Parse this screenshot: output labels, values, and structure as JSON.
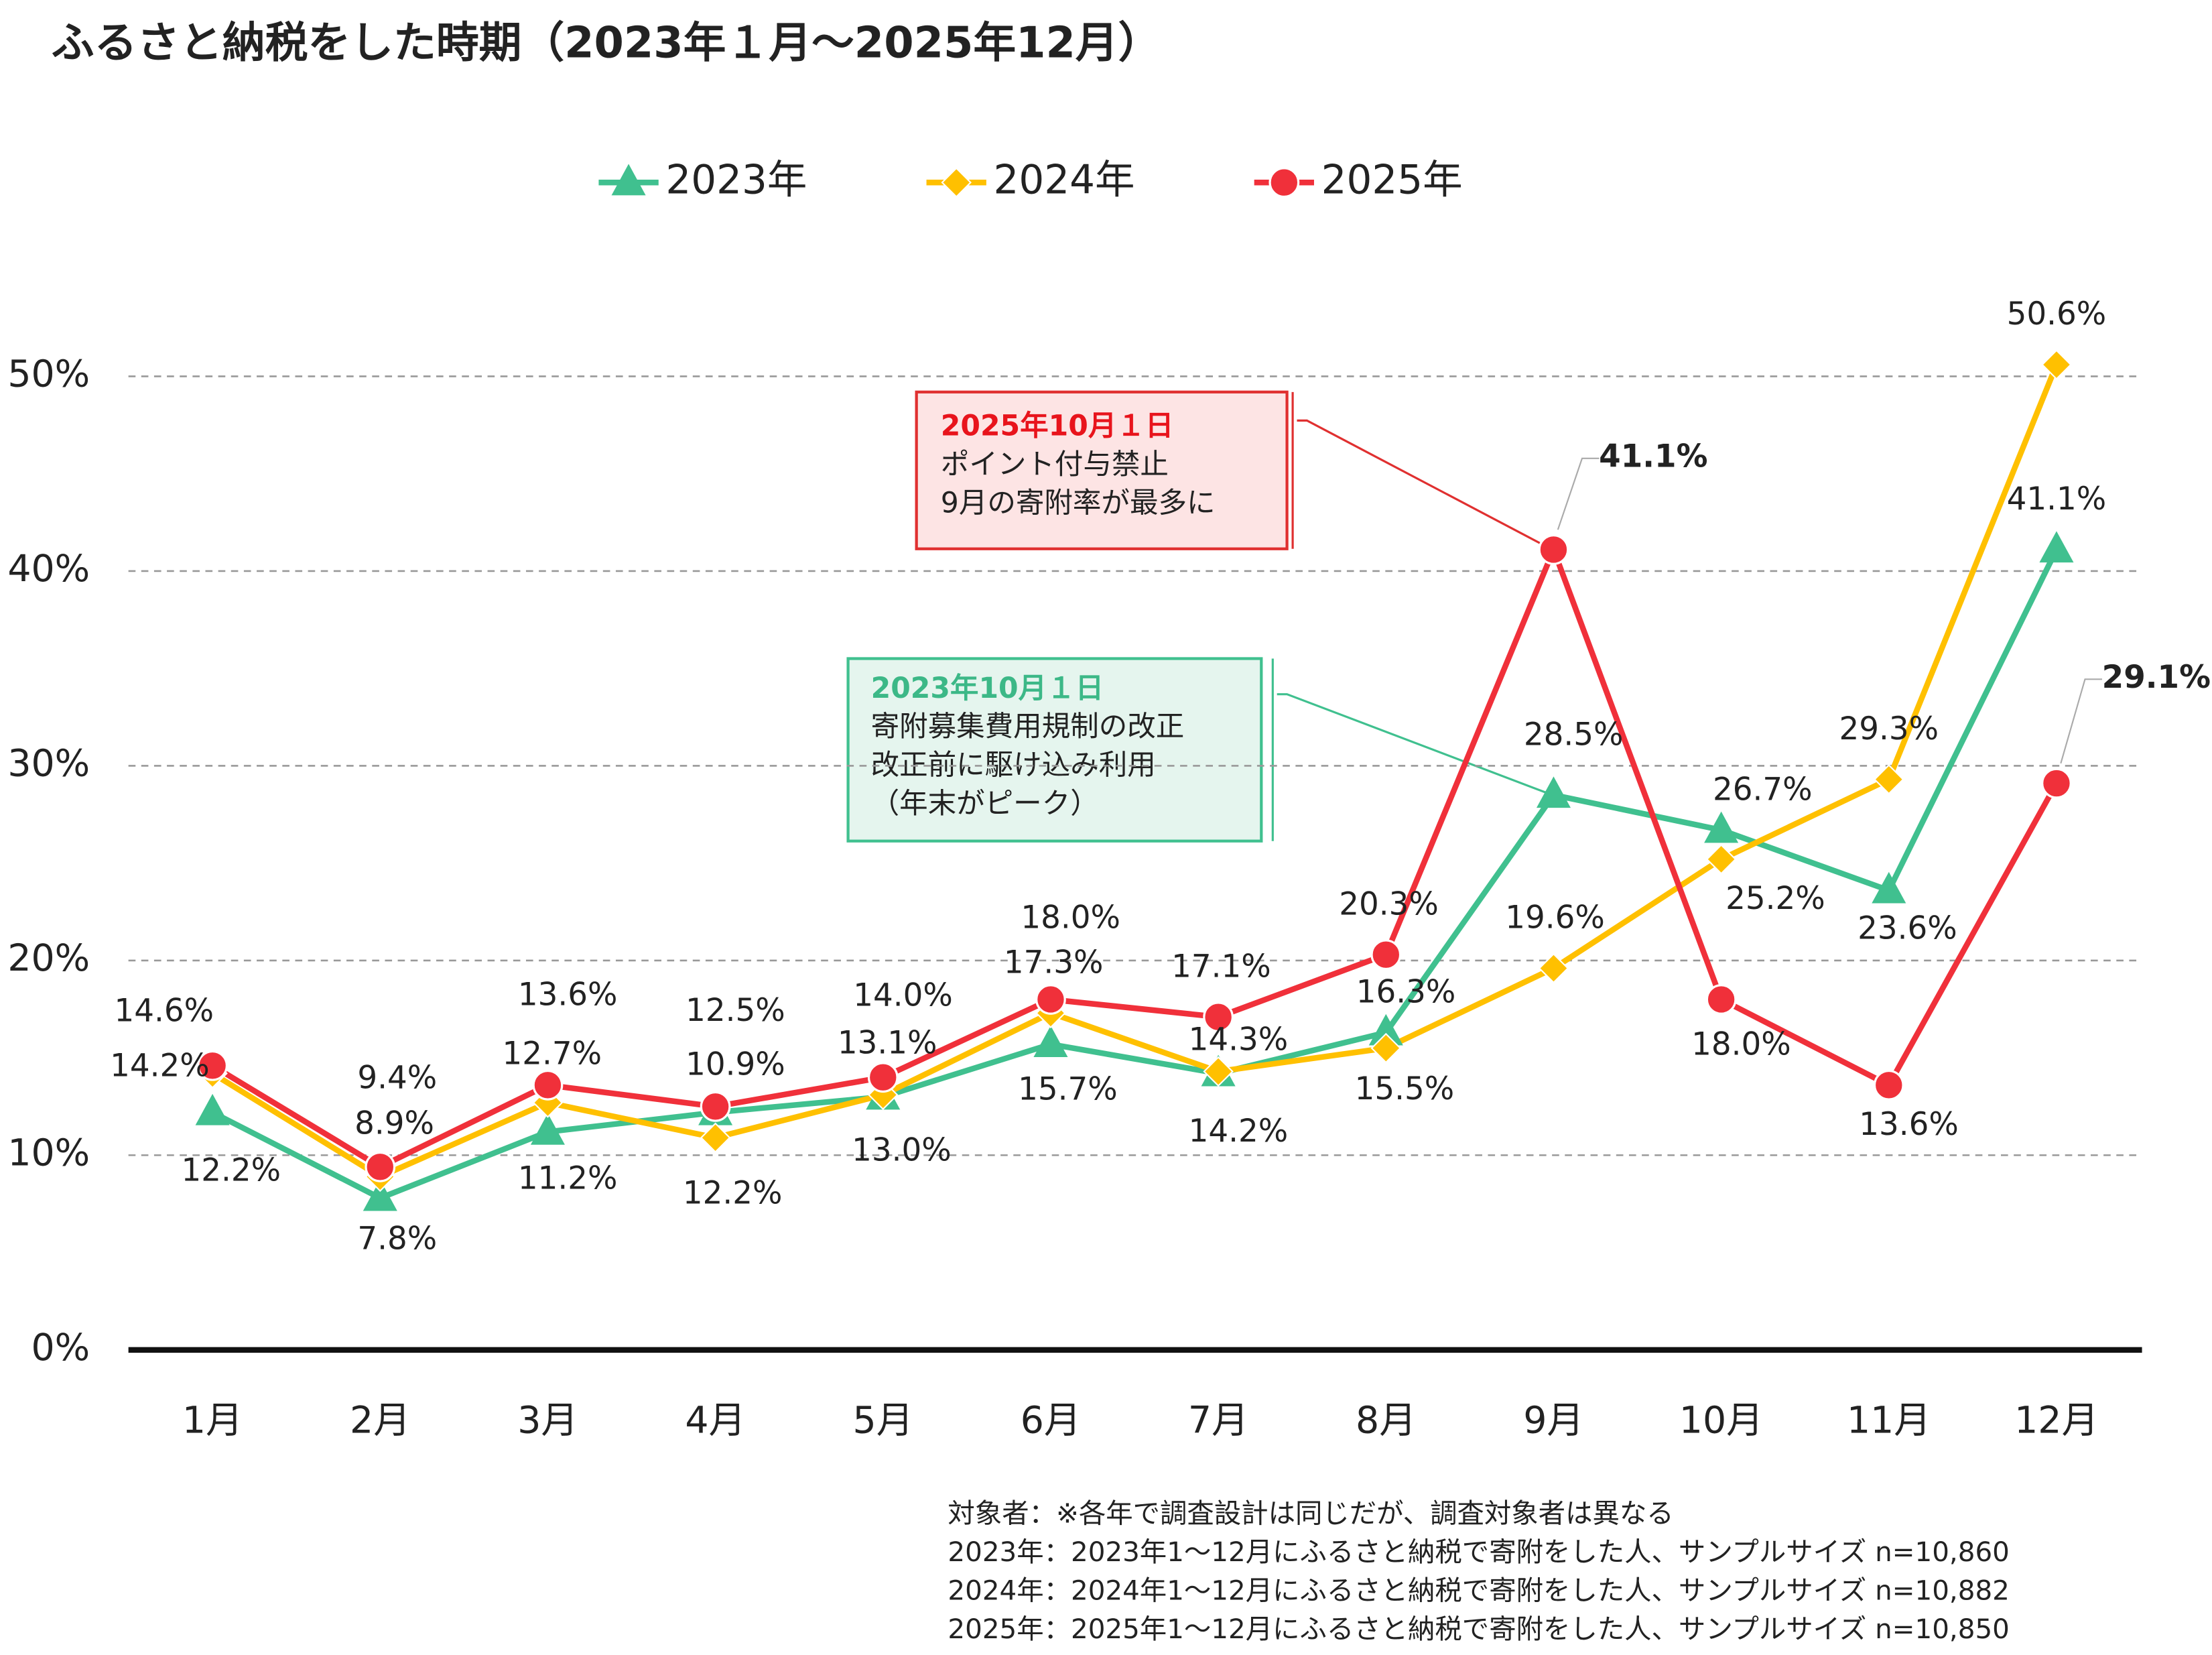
{
  "chart_data": {
    "type": "line",
    "title": "ふるさと納税をした時期（2023年１月～2025年12月）",
    "categories": [
      "1月",
      "2月",
      "3月",
      "4月",
      "5月",
      "6月",
      "7月",
      "8月",
      "9月",
      "10月",
      "11月",
      "12月"
    ],
    "series": [
      {
        "name": "2023年",
        "color": "#40c08f",
        "marker": "triangle",
        "values": [
          12.2,
          7.8,
          11.2,
          12.2,
          13.0,
          15.7,
          14.2,
          16.3,
          28.5,
          26.7,
          23.6,
          41.1
        ],
        "value_labels": [
          "12.2%",
          "7.8%",
          "11.2%",
          "12.2%",
          "13.0%",
          "15.7%",
          "14.2%",
          "16.3%",
          "28.5%",
          "26.7%",
          "23.6%",
          "41.1%"
        ]
      },
      {
        "name": "2024年",
        "color": "#ffc000",
        "marker": "diamond",
        "values": [
          14.2,
          8.9,
          12.7,
          10.9,
          13.1,
          17.3,
          14.3,
          15.5,
          19.6,
          25.2,
          29.3,
          50.6
        ],
        "value_labels": [
          "14.2%",
          "8.9%",
          "12.7%",
          "10.9%",
          "13.1%",
          "17.3%",
          "14.3%",
          "15.5%",
          "19.6%",
          "25.2%",
          "29.3%",
          "50.6%"
        ]
      },
      {
        "name": "2025年",
        "color": "#f0303a",
        "marker": "circle",
        "values": [
          14.6,
          9.4,
          13.6,
          12.5,
          14.0,
          18.0,
          17.1,
          20.3,
          41.1,
          18.0,
          13.6,
          29.1
        ],
        "value_labels": [
          "14.6%",
          "9.4%",
          "13.6%",
          "12.5%",
          "14.0%",
          "18.0%",
          "17.1%",
          "20.3%",
          "41.1%",
          "18.0%",
          "13.6%",
          "29.1%"
        ]
      }
    ],
    "ylim": [
      0,
      50
    ],
    "yticks": [
      {
        "value": 0,
        "label": "0%"
      },
      {
        "value": 10,
        "label": "10%"
      },
      {
        "value": 20,
        "label": "20%"
      },
      {
        "value": 30,
        "label": "30%"
      },
      {
        "value": 40,
        "label": "40%"
      },
      {
        "value": 50,
        "label": "50%"
      }
    ],
    "grid": true,
    "legend": "top",
    "annotations": [
      {
        "title": "2025年10月１日",
        "lines": [
          "ポイント付与禁止",
          "9月の寄附率が最多に"
        ]
      },
      {
        "title": "2023年10月１日",
        "lines": [
          "寄附募集費用規制の改正",
          "改正前に駆け込み利用",
          "（年末がピーク）"
        ]
      }
    ],
    "notes": [
      "対象者：※各年で調査設計は同じだが、調査対象者は異なる",
      "2023年：2023年1～12月にふるさと納税で寄附をした人、サンプルサイズ n=10,860",
      "2024年：2024年1～12月にふるさと納税で寄附をした人、サンプルサイズ n=10,882",
      "2025年：2025年1～12月にふるさと納税で寄附をした人、サンプルサイズ n=10,850"
    ]
  }
}
